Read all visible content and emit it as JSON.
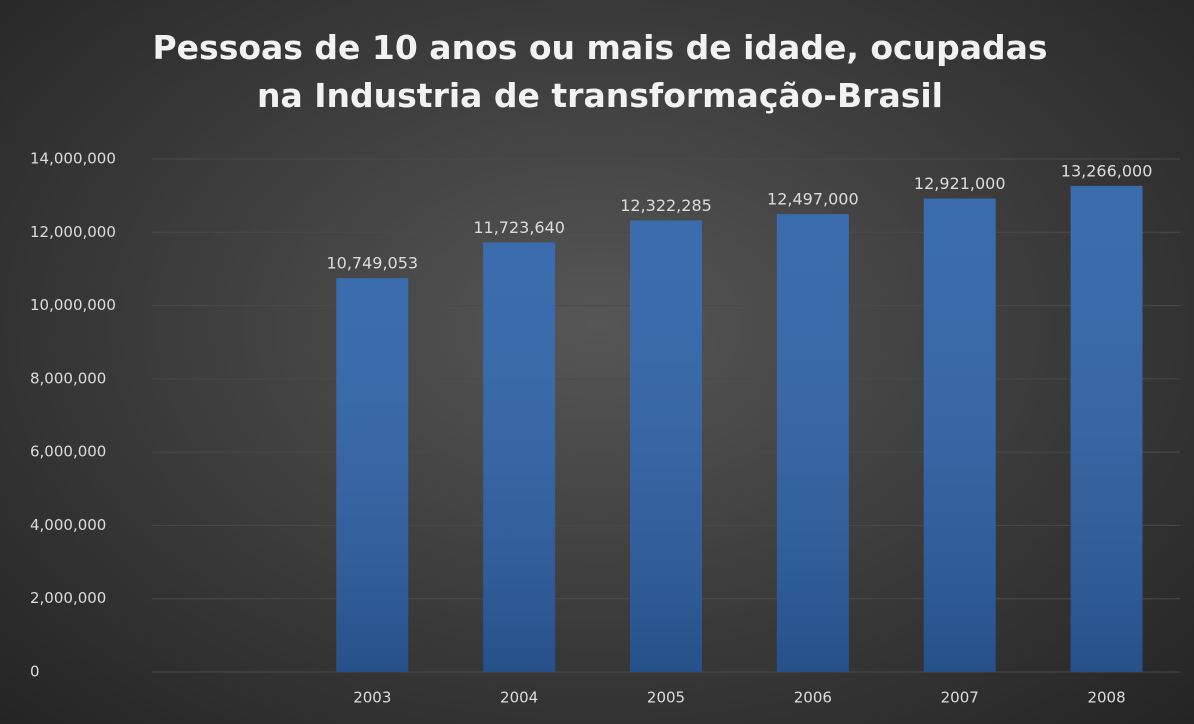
{
  "chart_data": {
    "type": "bar",
    "title": "Pessoas de 10 anos ou mais de idade, ocupadas na Industria de transformação-Brasil",
    "categories": [
      null,
      "2003",
      "2004",
      "2005",
      "2006",
      "2007",
      "2008"
    ],
    "values": [
      null,
      10749053,
      11723640,
      12322285,
      12497000,
      12921000,
      13266000
    ],
    "value_labels": [
      null,
      "10,749,053",
      "11,723,640",
      "12,322,285",
      "12,497,000",
      "12,921,000",
      "13,266,000"
    ],
    "color": "#2e62a8",
    "ylim": [
      0,
      14000000
    ],
    "yticks": [
      0,
      {
        "value": 2000000,
        "label": "2,000,000"
      },
      {
        "value": 4000000,
        "label": "4,000,000"
      },
      {
        "value": 6000000,
        "label": "6,000,000"
      },
      {
        "value": 8000000,
        "label": "8,000,000"
      },
      {
        "value": 10000000,
        "label": "10,000,000"
      },
      {
        "value": 12000000,
        "label": "12,000,000"
      },
      {
        "value": 14000000,
        "label": "14,000,000"
      }
    ],
    "grid": true
  }
}
